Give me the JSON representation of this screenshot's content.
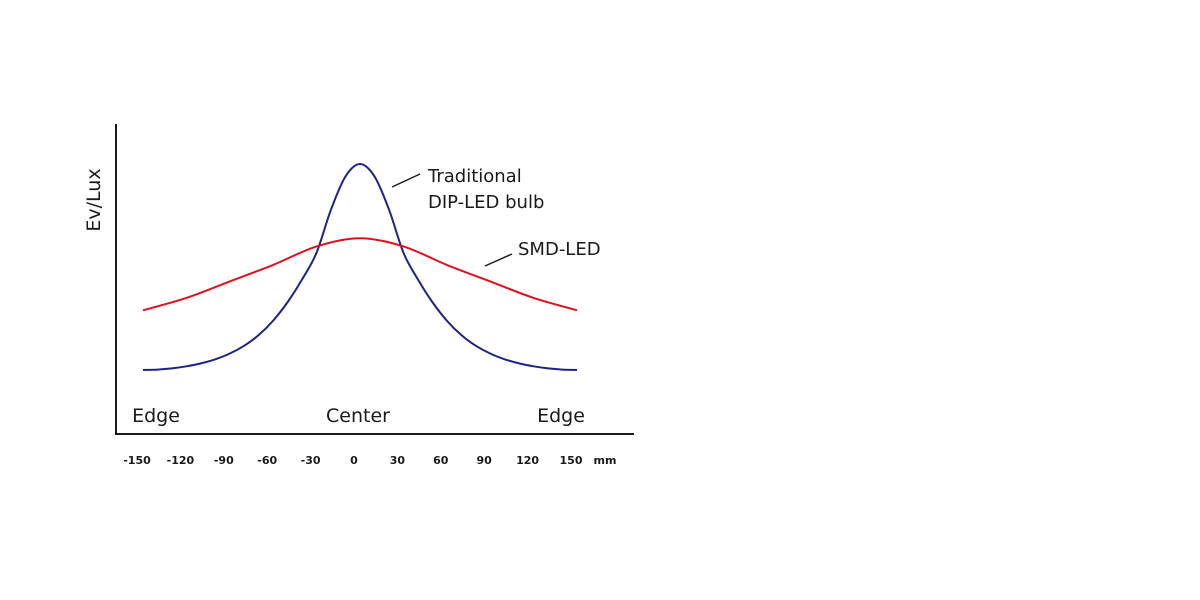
{
  "chart_data": {
    "type": "line",
    "ylabel": "Ev/Lux",
    "x": [
      -150,
      -120,
      -90,
      -60,
      -30,
      0,
      30,
      60,
      90,
      120,
      150
    ],
    "xtick_labels": [
      "-150",
      "-120",
      "-90",
      "-60",
      "-30",
      "0",
      "30",
      "60",
      "90",
      "120",
      "150"
    ],
    "xunit": "mm",
    "region_labels": [
      "Edge",
      "Center",
      "Edge"
    ],
    "xlim": [
      -150,
      150
    ],
    "series": [
      {
        "name": "Traditional DIP-LED bulb",
        "label_lines": [
          "Traditional",
          "DIP-LED bulb"
        ],
        "color": "#1c2587",
        "x": [
          -150,
          -140,
          -130,
          -120,
          -110,
          -100,
          -90,
          -80,
          -70,
          -60,
          -50,
          -40,
          -30,
          -20,
          -10,
          0,
          10,
          20,
          30,
          40,
          50,
          60,
          70,
          80,
          90,
          100,
          110,
          120,
          130,
          140,
          150
        ],
        "y": [
          0.0,
          0.002,
          0.008,
          0.018,
          0.032,
          0.052,
          0.08,
          0.118,
          0.17,
          0.24,
          0.33,
          0.44,
          0.57,
          0.78,
          0.94,
          1.0,
          0.94,
          0.78,
          0.57,
          0.44,
          0.33,
          0.24,
          0.17,
          0.118,
          0.08,
          0.052,
          0.032,
          0.018,
          0.008,
          0.002,
          0.0
        ]
      },
      {
        "name": "SMD-LED",
        "label_lines": [
          "SMD-LED"
        ],
        "color": "#e0101e",
        "x": [
          -150,
          -120,
          -90,
          -60,
          -30,
          0,
          30,
          60,
          90,
          120,
          150
        ],
        "y": [
          0.29,
          0.35,
          0.43,
          0.51,
          0.6,
          0.64,
          0.6,
          0.51,
          0.43,
          0.35,
          0.29
        ]
      }
    ],
    "grid": false,
    "legend": "none"
  }
}
